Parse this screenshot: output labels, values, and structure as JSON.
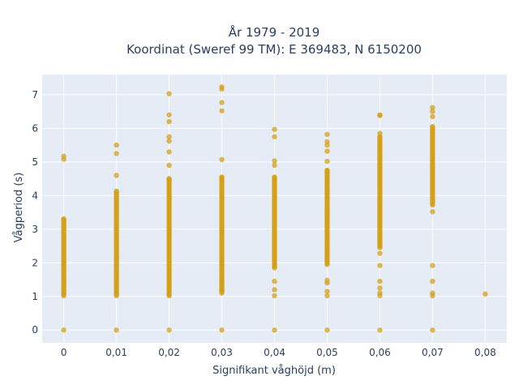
{
  "chart_data": {
    "type": "scatter",
    "title_line1": "År 1979 - 2019",
    "title_line2": "Koordinat (Sweref 99 TM): E 369483, N 6150200",
    "xlabel": "Signifikant våghöjd (m)",
    "ylabel": "Vågperiod (s)",
    "x_ticks": [
      0,
      0.01,
      0.02,
      0.03,
      0.04,
      0.05,
      0.06,
      0.07,
      0.08
    ],
    "x_tick_labels": [
      "0",
      "0,01",
      "0,02",
      "0,03",
      "0,04",
      "0,05",
      "0,06",
      "0,07",
      "0,08"
    ],
    "y_ticks": [
      0,
      1,
      2,
      3,
      4,
      5,
      6,
      7
    ],
    "y_tick_labels": [
      "0",
      "1",
      "2",
      "3",
      "4",
      "5",
      "6",
      "7"
    ],
    "xlim": [
      -0.0041,
      0.0841
    ],
    "ylim": [
      -0.38,
      7.6
    ],
    "grid": true,
    "marker_color": "#d4a017",
    "plot_bg": "#e5ecf6",
    "series": [
      {
        "x_value": 0,
        "dense_ranges": [
          [
            1.02,
            3.3
          ]
        ],
        "points": [
          0,
          5.08,
          5.17
        ]
      },
      {
        "x_value": 0.01,
        "dense_ranges": [
          [
            1.02,
            4.13
          ]
        ],
        "points": [
          0,
          4.6,
          5.25,
          5.5
        ]
      },
      {
        "x_value": 0.02,
        "dense_ranges": [
          [
            1.02,
            4.5
          ]
        ],
        "points": [
          0,
          4.9,
          5.3,
          5.62,
          5.75,
          6.2,
          6.4,
          7.03
        ]
      },
      {
        "x_value": 0.03,
        "dense_ranges": [
          [
            1.1,
            4.55
          ]
        ],
        "points": [
          0,
          1.2,
          1.45,
          5.07,
          6.52,
          6.77,
          7.17,
          7.23
        ]
      },
      {
        "x_value": 0.04,
        "dense_ranges": [
          [
            1.85,
            4.55
          ]
        ],
        "points": [
          0,
          1.02,
          1.2,
          1.45,
          4.9,
          5.03,
          5.75,
          5.97
        ]
      },
      {
        "x_value": 0.05,
        "dense_ranges": [
          [
            1.95,
            4.75
          ]
        ],
        "points": [
          0,
          1.02,
          1.15,
          1.4,
          1.48,
          5.02,
          5.32,
          5.5,
          5.6,
          5.82
        ]
      },
      {
        "x_value": 0.06,
        "dense_ranges": [
          [
            2.45,
            5.75
          ]
        ],
        "points": [
          0,
          1.02,
          1.1,
          1.25,
          1.45,
          1.92,
          2.28,
          5.85,
          6.38,
          6.4
        ]
      },
      {
        "x_value": 0.07,
        "dense_ranges": [
          [
            3.72,
            6.05
          ]
        ],
        "points": [
          0,
          1.02,
          1.1,
          1.45,
          1.92,
          3.52,
          6.35,
          6.5,
          6.62
        ]
      },
      {
        "x_value": 0.08,
        "dense_ranges": [],
        "points": [
          1.07
        ]
      }
    ]
  }
}
